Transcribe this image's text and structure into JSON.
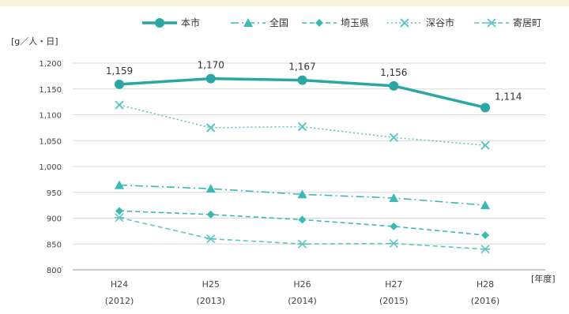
{
  "chart_data": {
    "type": "line",
    "ylabel": "[g／人・日]",
    "xlabel": "[年度]",
    "ylim": [
      800,
      1200
    ],
    "yticks": [
      "1,200",
      "1,150",
      "1,100",
      "1,050",
      "1,000",
      "950",
      "900",
      "850",
      "800"
    ],
    "ytick_values": [
      1200,
      1150,
      1100,
      1050,
      1000,
      950,
      900,
      850,
      800
    ],
    "categories": [
      {
        "top": "H24",
        "bottom": "(2012)"
      },
      {
        "top": "H25",
        "bottom": "(2013)"
      },
      {
        "top": "H26",
        "bottom": "(2014)"
      },
      {
        "top": "H27",
        "bottom": "(2015)"
      },
      {
        "top": "H28",
        "bottom": "(2016)"
      }
    ],
    "grid": true,
    "legend_position": "top",
    "series": [
      {
        "name": "本市",
        "values": [
          1159,
          1170,
          1167,
          1156,
          1114
        ],
        "data_labels": [
          "1,159",
          "1,170",
          "1,167",
          "1,156",
          "1,114"
        ],
        "color": "#2aa7a3",
        "marker": "circle",
        "dash": "solid"
      },
      {
        "name": "全国",
        "values": [
          964,
          957,
          946,
          939,
          925
        ],
        "color": "#3bb9b4",
        "marker": "triangle",
        "dash": "dashdot"
      },
      {
        "name": "埼玉県",
        "values": [
          914,
          907,
          897,
          884,
          867
        ],
        "color": "#3bb9b4",
        "marker": "diamond",
        "dash": "dashed"
      },
      {
        "name": "深谷市",
        "values": [
          1119,
          1075,
          1077,
          1056,
          1041
        ],
        "color": "#5ec6c2",
        "marker": "x",
        "dash": "dotted"
      },
      {
        "name": "寄居町",
        "values": [
          901,
          860,
          850,
          851,
          840
        ],
        "color": "#5ec6c2",
        "marker": "asterisk",
        "dash": "dashed"
      }
    ]
  }
}
